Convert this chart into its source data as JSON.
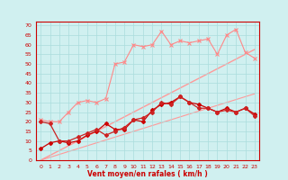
{
  "x": [
    0,
    1,
    2,
    3,
    4,
    5,
    6,
    7,
    8,
    9,
    10,
    11,
    12,
    13,
    14,
    15,
    16,
    17,
    18,
    19,
    20,
    21,
    22,
    23
  ],
  "line1": [
    6,
    9,
    10,
    9,
    10,
    13,
    15,
    19,
    16,
    16,
    21,
    20,
    26,
    29,
    30,
    33,
    30,
    29,
    27,
    25,
    27,
    25,
    27,
    24
  ],
  "line2": [
    20,
    19,
    10,
    10,
    12,
    14,
    16,
    13,
    15,
    17,
    21,
    22,
    25,
    30,
    29,
    33,
    30,
    27,
    27,
    25,
    26,
    25,
    27,
    23
  ],
  "line3": [
    21,
    20,
    20,
    25,
    30,
    31,
    30,
    32,
    50,
    51,
    60,
    59,
    60,
    67,
    60,
    62,
    61,
    62,
    63,
    55,
    65,
    68,
    56,
    53
  ],
  "line4_slope": [
    0,
    2.5,
    5,
    7.5,
    10,
    12.5,
    15,
    17.5,
    20,
    22.5,
    25,
    27.5,
    30,
    32.5,
    35,
    37.5,
    40,
    42.5,
    45,
    47.5,
    50,
    52.5,
    55,
    57.5
  ],
  "line5_slope": [
    0,
    1.5,
    3,
    4.5,
    6,
    7.5,
    9,
    10.5,
    12,
    13.5,
    15,
    16.5,
    18,
    19.5,
    21,
    22.5,
    24,
    25.5,
    27,
    28.5,
    30,
    31.5,
    33,
    34.5
  ],
  "xlabel": "Vent moyen/en rafales ( km/h )",
  "yticks": [
    0,
    5,
    10,
    15,
    20,
    25,
    30,
    35,
    40,
    45,
    50,
    55,
    60,
    65,
    70
  ],
  "xticks": [
    0,
    1,
    2,
    3,
    4,
    5,
    6,
    7,
    8,
    9,
    10,
    11,
    12,
    13,
    14,
    15,
    16,
    17,
    18,
    19,
    20,
    21,
    22,
    23
  ],
  "ylim": [
    0,
    72
  ],
  "xlim": [
    -0.5,
    23.5
  ],
  "color_dark_red": "#cc0000",
  "color_light_red": "#ff9999",
  "color_mid_red": "#ff5555",
  "bg_color": "#d0f0f0",
  "grid_color": "#aadddd"
}
